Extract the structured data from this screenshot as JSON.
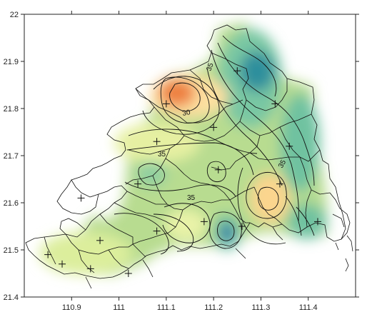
{
  "map": {
    "x_ticks": [
      "110.9",
      "111",
      "111.1",
      "111.2",
      "111.3",
      "111.4"
    ],
    "y_ticks": [
      "21.4",
      "21.5",
      "21.6",
      "21.7",
      "21.8",
      "21.9",
      "22"
    ],
    "contour_labels": [
      "35",
      "35",
      "35",
      "30",
      "35"
    ],
    "colors": {
      "low": "#2f8f9d",
      "mid_low": "#6fc2a0",
      "mid": "#b9dd8e",
      "mid_high": "#e8f0a4",
      "high": "#fbd58e",
      "very_high": "#ee8040",
      "lines": "#111111"
    }
  },
  "chart_data": {
    "type": "heatmap",
    "xlim": [
      110.8,
      111.5
    ],
    "ylim": [
      21.4,
      22.0
    ],
    "grid": false,
    "stations": [
      {
        "x": 110.85,
        "y": 21.49
      },
      {
        "x": 110.88,
        "y": 21.47
      },
      {
        "x": 110.94,
        "y": 21.46
      },
      {
        "x": 110.96,
        "y": 21.52
      },
      {
        "x": 111.02,
        "y": 21.45
      },
      {
        "x": 111.08,
        "y": 21.54
      },
      {
        "x": 111.04,
        "y": 21.64
      },
      {
        "x": 111.08,
        "y": 21.73
      },
      {
        "x": 111.1,
        "y": 21.81
      },
      {
        "x": 111.2,
        "y": 21.76
      },
      {
        "x": 111.21,
        "y": 21.67
      },
      {
        "x": 111.18,
        "y": 21.56
      },
      {
        "x": 111.26,
        "y": 21.55
      },
      {
        "x": 111.25,
        "y": 21.88
      },
      {
        "x": 111.33,
        "y": 21.81
      },
      {
        "x": 111.36,
        "y": 21.72
      },
      {
        "x": 111.34,
        "y": 21.64
      },
      {
        "x": 111.42,
        "y": 21.56
      },
      {
        "x": 110.92,
        "y": 21.61
      }
    ]
  }
}
